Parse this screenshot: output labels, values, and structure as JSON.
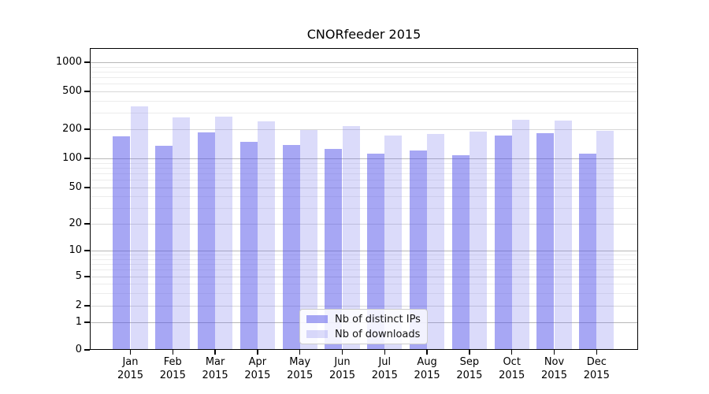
{
  "title": "CNORfeeder 2015",
  "colors": {
    "bar_distinct_ips": "rgba(79,79,233,0.5)",
    "bar_downloads": "rgba(113,113,235,0.25)",
    "grid_decade": "#b8b8b8",
    "grid_sub": "#d8d8d8",
    "grid_minor": "#ececec",
    "axis": "#000000",
    "background": "#ffffff"
  },
  "chart_data": {
    "type": "bar",
    "title": "CNORfeeder 2015",
    "categories": [
      "Jan 2015",
      "Feb 2015",
      "Mar 2015",
      "Apr 2015",
      "May 2015",
      "Jun 2015",
      "Jul 2015",
      "Aug 2015",
      "Sep 2015",
      "Oct 2015",
      "Nov 2015",
      "Dec 2015"
    ],
    "series": [
      {
        "name": "Nb of distinct IPs",
        "color": "rgba(79,79,233,0.5)",
        "values": [
          170,
          136,
          187,
          147,
          137,
          125,
          111,
          121,
          107,
          172,
          181,
          112
        ]
      },
      {
        "name": "Nb of downloads",
        "color": "rgba(113,113,235,0.25)",
        "values": [
          346,
          264,
          271,
          240,
          197,
          216,
          172,
          179,
          189,
          251,
          245,
          193
        ]
      }
    ],
    "xlabel": "",
    "ylabel": "",
    "yscale": "symlog",
    "yticks": [
      0,
      1,
      2,
      5,
      10,
      20,
      50,
      100,
      200,
      500,
      1000
    ],
    "ylim": [
      0,
      1400
    ],
    "grid": true,
    "legend_position": "lower center"
  }
}
